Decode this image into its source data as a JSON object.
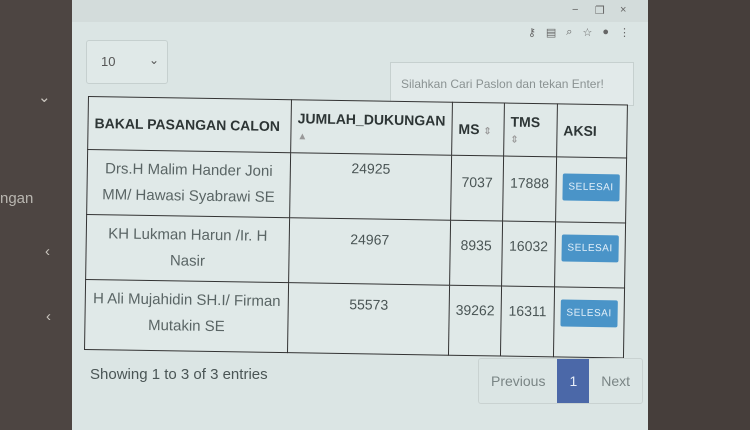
{
  "sidebar": {
    "partial_label": "ngan",
    "chevron_down": "⌄",
    "chevrons": [
      "‹",
      "‹"
    ]
  },
  "window": {
    "minimize": "−",
    "restore": "❐",
    "close": "×"
  },
  "toolbar_icons": [
    "key-icon",
    "translate-icon",
    "zoom-icon",
    "star-icon",
    "account-icon",
    "menu-icon"
  ],
  "length_select": {
    "value": "10"
  },
  "search": {
    "placeholder": "Silahkan Cari Paslon dan tekan Enter!"
  },
  "table": {
    "headers": [
      "BAKAL PASANGAN CALON",
      "JUMLAH_DUKUNGAN",
      "MS",
      "TMS",
      "AKSI"
    ],
    "rows": [
      {
        "name": "Drs.H Malim Hander Joni MM/ Hawasi Syabrawi SE",
        "jumlah": "24925",
        "ms": "7037",
        "tms": "17888",
        "action": "SELESAI"
      },
      {
        "name": "KH Lukman Harun /Ir. H Nasir",
        "jumlah": "24967",
        "ms": "8935",
        "tms": "16032",
        "action": "SELESAI"
      },
      {
        "name": "H Ali Mujahidin SH.I/ Firman Mutakin SE",
        "jumlah": "55573",
        "ms": "39262",
        "tms": "16311",
        "action": "SELESAI"
      }
    ]
  },
  "info": "Showing 1 to 3 of 3 entries",
  "pagination": {
    "previous": "Previous",
    "current": "1",
    "next": "Next"
  },
  "colors": {
    "button": "#4a94c8",
    "active_page": "#4b68a8",
    "sidebar": "#4d4542"
  }
}
